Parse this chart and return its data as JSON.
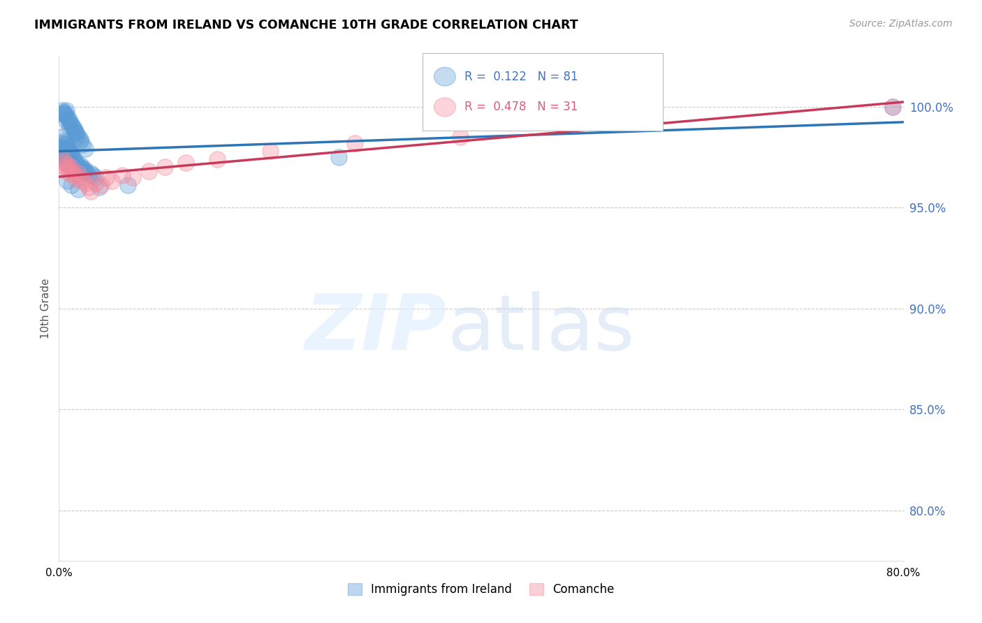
{
  "title": "IMMIGRANTS FROM IRELAND VS COMANCHE 10TH GRADE CORRELATION CHART",
  "source": "Source: ZipAtlas.com",
  "ylabel": "10th Grade",
  "ytick_values": [
    1.0,
    0.95,
    0.9,
    0.85,
    0.8
  ],
  "xlim": [
    0.0,
    0.8
  ],
  "ylim": [
    0.775,
    1.025
  ],
  "blue_color": "#5b9bd5",
  "pink_color": "#f4879a",
  "trendline_blue": "#2e75b6",
  "trendline_pink": "#c9395a",
  "blue_scatter_x": [
    0.002,
    0.003,
    0.003,
    0.004,
    0.004,
    0.004,
    0.005,
    0.005,
    0.005,
    0.006,
    0.006,
    0.006,
    0.007,
    0.007,
    0.007,
    0.007,
    0.008,
    0.008,
    0.008,
    0.009,
    0.009,
    0.009,
    0.01,
    0.01,
    0.01,
    0.011,
    0.011,
    0.012,
    0.012,
    0.013,
    0.013,
    0.014,
    0.014,
    0.015,
    0.015,
    0.016,
    0.017,
    0.018,
    0.019,
    0.02,
    0.021,
    0.022,
    0.023,
    0.024,
    0.025,
    0.026,
    0.028,
    0.03,
    0.032,
    0.035,
    0.003,
    0.004,
    0.005,
    0.006,
    0.007,
    0.008,
    0.009,
    0.01,
    0.011,
    0.012,
    0.013,
    0.014,
    0.015,
    0.016,
    0.017,
    0.018,
    0.02,
    0.022,
    0.025,
    0.005,
    0.007,
    0.01,
    0.015,
    0.02,
    0.008,
    0.012,
    0.018,
    0.038,
    0.065,
    0.79,
    0.265
  ],
  "blue_scatter_y": [
    0.98,
    0.985,
    0.978,
    0.982,
    0.977,
    0.975,
    0.983,
    0.979,
    0.976,
    0.981,
    0.978,
    0.974,
    0.982,
    0.979,
    0.976,
    0.972,
    0.98,
    0.977,
    0.973,
    0.979,
    0.975,
    0.972,
    0.978,
    0.975,
    0.971,
    0.977,
    0.973,
    0.976,
    0.972,
    0.975,
    0.971,
    0.974,
    0.97,
    0.973,
    0.969,
    0.972,
    0.971,
    0.97,
    0.969,
    0.971,
    0.97,
    0.969,
    0.968,
    0.969,
    0.968,
    0.967,
    0.966,
    0.967,
    0.966,
    0.965,
    0.998,
    0.997,
    0.996,
    0.997,
    0.998,
    0.995,
    0.994,
    0.993,
    0.992,
    0.991,
    0.99,
    0.989,
    0.988,
    0.987,
    0.986,
    0.985,
    0.983,
    0.981,
    0.979,
    0.996,
    0.993,
    0.99,
    0.987,
    0.984,
    0.963,
    0.961,
    0.959,
    0.96,
    0.961,
    1.0,
    0.975
  ],
  "pink_scatter_x": [
    0.004,
    0.005,
    0.006,
    0.007,
    0.008,
    0.009,
    0.01,
    0.011,
    0.013,
    0.015,
    0.016,
    0.018,
    0.02,
    0.022,
    0.025,
    0.028,
    0.03,
    0.035,
    0.04,
    0.045,
    0.05,
    0.06,
    0.07,
    0.085,
    0.1,
    0.12,
    0.15,
    0.2,
    0.28,
    0.38,
    0.79
  ],
  "pink_scatter_y": [
    0.974,
    0.972,
    0.97,
    0.968,
    0.971,
    0.969,
    0.967,
    0.97,
    0.968,
    0.966,
    0.964,
    0.967,
    0.965,
    0.963,
    0.962,
    0.96,
    0.958,
    0.962,
    0.961,
    0.965,
    0.963,
    0.966,
    0.965,
    0.968,
    0.97,
    0.972,
    0.974,
    0.978,
    0.982,
    0.985,
    1.0
  ],
  "xtick_positions": [
    0.0,
    0.1,
    0.2,
    0.3,
    0.4,
    0.5,
    0.6,
    0.7,
    0.8
  ],
  "xtick_labels": [
    "0.0%",
    "",
    "",
    "",
    "",
    "",
    "",
    "",
    "80.0%"
  ],
  "legend_r1_val": "0.122",
  "legend_n1_val": "81",
  "legend_r2_val": "0.478",
  "legend_n2_val": "31",
  "legend_color_r": "#4472c4",
  "legend_color_pink": "#e05a7a",
  "bottom_legend_blue": "Immigrants from Ireland",
  "bottom_legend_pink": "Comanche"
}
